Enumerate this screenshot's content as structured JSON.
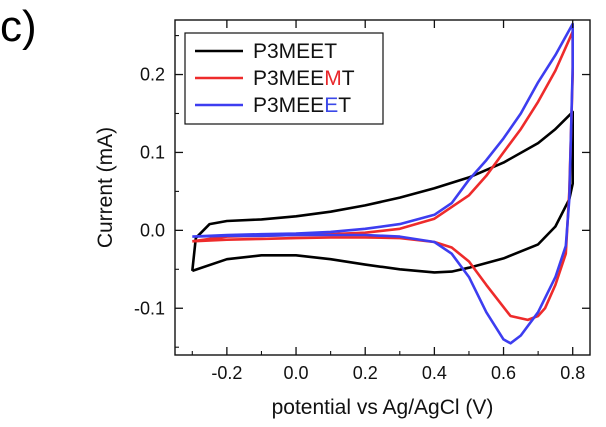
{
  "panel_label": "c)",
  "chart_data": {
    "type": "line",
    "title": "",
    "xlabel": "potential vs Ag/AgCl (V)",
    "ylabel": "Current (mA)",
    "xlim": [
      -0.35,
      0.85
    ],
    "ylim": [
      -0.16,
      0.27
    ],
    "xticks": [
      -0.2,
      0.0,
      0.2,
      0.4,
      0.6,
      0.8
    ],
    "xtick_labels": [
      "-0.2",
      "0.0",
      "0.2",
      "0.4",
      "0.6",
      "0.8"
    ],
    "yticks": [
      -0.1,
      0.0,
      0.1,
      0.2
    ],
    "ytick_labels": [
      "-0.1",
      "0.0",
      "0.1",
      "0.2"
    ],
    "grid": false,
    "legend_position": "top-left",
    "series": [
      {
        "name": "P3MEET",
        "label_parts": [
          {
            "text": "P3MEET",
            "color": "#111111"
          }
        ],
        "color": "#000000",
        "points": [
          [
            -0.3,
            -0.052
          ],
          [
            -0.29,
            -0.01
          ],
          [
            -0.25,
            0.008
          ],
          [
            -0.2,
            0.012
          ],
          [
            -0.1,
            0.014
          ],
          [
            0.0,
            0.018
          ],
          [
            0.1,
            0.024
          ],
          [
            0.2,
            0.032
          ],
          [
            0.3,
            0.042
          ],
          [
            0.4,
            0.054
          ],
          [
            0.5,
            0.068
          ],
          [
            0.6,
            0.087
          ],
          [
            0.7,
            0.112
          ],
          [
            0.75,
            0.13
          ],
          [
            0.8,
            0.152
          ],
          [
            0.8,
            0.06
          ],
          [
            0.79,
            0.04
          ],
          [
            0.75,
            0.005
          ],
          [
            0.7,
            -0.018
          ],
          [
            0.6,
            -0.036
          ],
          [
            0.5,
            -0.048
          ],
          [
            0.45,
            -0.053
          ],
          [
            0.4,
            -0.054
          ],
          [
            0.3,
            -0.05
          ],
          [
            0.2,
            -0.044
          ],
          [
            0.1,
            -0.037
          ],
          [
            0.0,
            -0.032
          ],
          [
            -0.1,
            -0.032
          ],
          [
            -0.2,
            -0.037
          ],
          [
            -0.3,
            -0.052
          ]
        ]
      },
      {
        "name": "P3MEEMT",
        "label_parts": [
          {
            "text": "P3MEE",
            "color": "#111111"
          },
          {
            "text": "M",
            "color": "#e8262a"
          },
          {
            "text": "T",
            "color": "#111111"
          }
        ],
        "color": "#ee2b2b",
        "points": [
          [
            -0.3,
            -0.014
          ],
          [
            -0.2,
            -0.008
          ],
          [
            -0.1,
            -0.007
          ],
          [
            0.0,
            -0.006
          ],
          [
            0.1,
            -0.005
          ],
          [
            0.2,
            -0.003
          ],
          [
            0.3,
            0.002
          ],
          [
            0.4,
            0.015
          ],
          [
            0.5,
            0.045
          ],
          [
            0.55,
            0.07
          ],
          [
            0.6,
            0.1
          ],
          [
            0.65,
            0.13
          ],
          [
            0.7,
            0.165
          ],
          [
            0.75,
            0.205
          ],
          [
            0.8,
            0.255
          ],
          [
            0.8,
            0.2
          ],
          [
            0.79,
            0.05
          ],
          [
            0.78,
            -0.03
          ],
          [
            0.75,
            -0.07
          ],
          [
            0.72,
            -0.1
          ],
          [
            0.7,
            -0.11
          ],
          [
            0.67,
            -0.115
          ],
          [
            0.62,
            -0.11
          ],
          [
            0.55,
            -0.07
          ],
          [
            0.5,
            -0.04
          ],
          [
            0.45,
            -0.022
          ],
          [
            0.4,
            -0.015
          ],
          [
            0.3,
            -0.01
          ],
          [
            0.2,
            -0.009
          ],
          [
            0.1,
            -0.009
          ],
          [
            0.0,
            -0.01
          ],
          [
            -0.1,
            -0.011
          ],
          [
            -0.2,
            -0.012
          ],
          [
            -0.3,
            -0.014
          ]
        ]
      },
      {
        "name": "P3MEEET",
        "label_parts": [
          {
            "text": "P3MEE",
            "color": "#111111"
          },
          {
            "text": "E",
            "color": "#3b48e8"
          },
          {
            "text": "T",
            "color": "#111111"
          }
        ],
        "color": "#3d3df0",
        "points": [
          [
            -0.3,
            -0.008
          ],
          [
            -0.2,
            -0.006
          ],
          [
            -0.1,
            -0.005
          ],
          [
            0.0,
            -0.004
          ],
          [
            0.1,
            -0.002
          ],
          [
            0.2,
            0.002
          ],
          [
            0.3,
            0.008
          ],
          [
            0.4,
            0.02
          ],
          [
            0.45,
            0.035
          ],
          [
            0.5,
            0.065
          ],
          [
            0.55,
            0.09
          ],
          [
            0.6,
            0.118
          ],
          [
            0.65,
            0.15
          ],
          [
            0.7,
            0.19
          ],
          [
            0.75,
            0.225
          ],
          [
            0.8,
            0.265
          ],
          [
            0.8,
            0.21
          ],
          [
            0.79,
            0.04
          ],
          [
            0.78,
            -0.02
          ],
          [
            0.75,
            -0.06
          ],
          [
            0.7,
            -0.105
          ],
          [
            0.65,
            -0.135
          ],
          [
            0.62,
            -0.145
          ],
          [
            0.6,
            -0.14
          ],
          [
            0.55,
            -0.105
          ],
          [
            0.5,
            -0.06
          ],
          [
            0.45,
            -0.03
          ],
          [
            0.4,
            -0.015
          ],
          [
            0.3,
            -0.008
          ],
          [
            0.2,
            -0.006
          ],
          [
            0.1,
            -0.006
          ],
          [
            0.0,
            -0.006
          ],
          [
            -0.1,
            -0.007
          ],
          [
            -0.2,
            -0.007
          ],
          [
            -0.3,
            -0.008
          ]
        ]
      }
    ]
  }
}
